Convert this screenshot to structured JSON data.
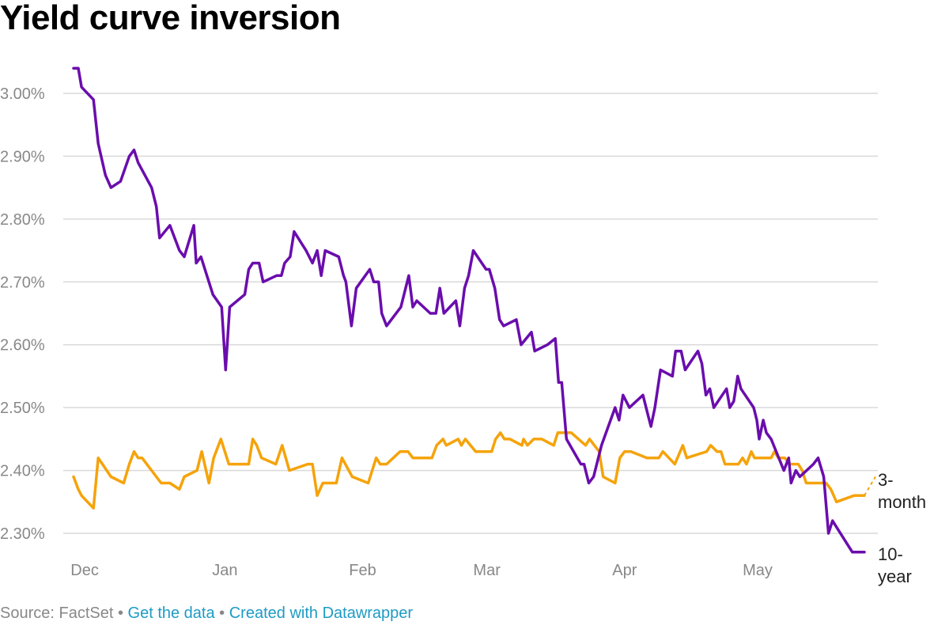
{
  "title": "Yield curve inversion",
  "footer": {
    "source": "Source: FactSet",
    "separator": " • ",
    "get_data": "Get the data",
    "created_with": "Created with Datawrapper"
  },
  "colors": {
    "ten_year": "#6a0dad",
    "three_month": "#f5a30b",
    "grid": "#d9d9d9",
    "axis_text": "#888888",
    "label_text": "#222222"
  },
  "chart_data": {
    "type": "line",
    "title": "Yield curve inversion",
    "xlabel": "",
    "ylabel": "",
    "ylim": [
      2.27,
      3.04
    ],
    "xlim": [
      0,
      1000
    ],
    "y_ticks": [
      3.0,
      2.9,
      2.8,
      2.7,
      2.6,
      2.5,
      2.4,
      2.3
    ],
    "y_tick_labels": [
      "3.00%",
      "2.90%",
      "2.80%",
      "2.70%",
      "2.60%",
      "2.50%",
      "2.40%",
      "2.30%"
    ],
    "x_ticks": [
      {
        "label": "Dec",
        "x": 14
      },
      {
        "label": "Jan",
        "x": 190
      },
      {
        "label": "Feb",
        "x": 363
      },
      {
        "label": "Mar",
        "x": 519
      },
      {
        "label": "Apr",
        "x": 692
      },
      {
        "label": "May",
        "x": 859
      }
    ],
    "grid": true,
    "series": [
      {
        "name": "10-year",
        "key": "ten_year",
        "end_label": [
          "10-",
          "year"
        ],
        "dashed_tail_from": 993,
        "points": [
          [
            0,
            3.04
          ],
          [
            6,
            3.04
          ],
          [
            10,
            3.01
          ],
          [
            25,
            2.99
          ],
          [
            31,
            2.92
          ],
          [
            40,
            2.87
          ],
          [
            47,
            2.85
          ],
          [
            59,
            2.86
          ],
          [
            70,
            2.9
          ],
          [
            76,
            2.91
          ],
          [
            81,
            2.89
          ],
          [
            98,
            2.85
          ],
          [
            104,
            2.82
          ],
          [
            108,
            2.77
          ],
          [
            121,
            2.79
          ],
          [
            133,
            2.75
          ],
          [
            139,
            2.74
          ],
          [
            151,
            2.79
          ],
          [
            154,
            2.73
          ],
          [
            160,
            2.74
          ],
          [
            175,
            2.68
          ],
          [
            186,
            2.66
          ],
          [
            191,
            2.56
          ],
          [
            196,
            2.66
          ],
          [
            215,
            2.68
          ],
          [
            220,
            2.72
          ],
          [
            225,
            2.73
          ],
          [
            233,
            2.73
          ],
          [
            238,
            2.7
          ],
          [
            255,
            2.71
          ],
          [
            261,
            2.71
          ],
          [
            265,
            2.73
          ],
          [
            272,
            2.74
          ],
          [
            277,
            2.78
          ],
          [
            292,
            2.75
          ],
          [
            300,
            2.73
          ],
          [
            306,
            2.75
          ],
          [
            311,
            2.71
          ],
          [
            316,
            2.75
          ],
          [
            333,
            2.74
          ],
          [
            339,
            2.71
          ],
          [
            342,
            2.7
          ],
          [
            349,
            2.63
          ],
          [
            355,
            2.69
          ],
          [
            372,
            2.72
          ],
          [
            377,
            2.7
          ],
          [
            383,
            2.7
          ],
          [
            387,
            2.65
          ],
          [
            393,
            2.63
          ],
          [
            411,
            2.66
          ],
          [
            417,
            2.69
          ],
          [
            421,
            2.71
          ],
          [
            426,
            2.66
          ],
          [
            431,
            2.67
          ],
          [
            448,
            2.65
          ],
          [
            455,
            2.65
          ],
          [
            460,
            2.69
          ],
          [
            465,
            2.65
          ],
          [
            480,
            2.67
          ],
          [
            485,
            2.63
          ],
          [
            491,
            2.69
          ],
          [
            496,
            2.71
          ],
          [
            502,
            2.75
          ],
          [
            518,
            2.72
          ],
          [
            522,
            2.72
          ],
          [
            529,
            2.69
          ],
          [
            535,
            2.64
          ],
          [
            540,
            2.63
          ],
          [
            556,
            2.64
          ],
          [
            562,
            2.6
          ],
          [
            575,
            2.62
          ],
          [
            579,
            2.59
          ],
          [
            595,
            2.6
          ],
          [
            605,
            2.61
          ],
          [
            609,
            2.54
          ],
          [
            613,
            2.54
          ],
          [
            619,
            2.45
          ],
          [
            628,
            2.43
          ],
          [
            637,
            2.41
          ],
          [
            641,
            2.41
          ],
          [
            647,
            2.38
          ],
          [
            653,
            2.39
          ],
          [
            657,
            2.41
          ],
          [
            663,
            2.44
          ],
          [
            680,
            2.5
          ],
          [
            685,
            2.48
          ],
          [
            690,
            2.52
          ],
          [
            698,
            2.5
          ],
          [
            715,
            2.52
          ],
          [
            721,
            2.49
          ],
          [
            725,
            2.47
          ],
          [
            730,
            2.5
          ],
          [
            737,
            2.56
          ],
          [
            752,
            2.55
          ],
          [
            756,
            2.59
          ],
          [
            763,
            2.59
          ],
          [
            768,
            2.56
          ],
          [
            784,
            2.59
          ],
          [
            789,
            2.57
          ],
          [
            794,
            2.52
          ],
          [
            799,
            2.53
          ],
          [
            804,
            2.5
          ],
          [
            820,
            2.53
          ],
          [
            824,
            2.5
          ],
          [
            829,
            2.51
          ],
          [
            834,
            2.55
          ],
          [
            838,
            2.53
          ],
          [
            854,
            2.5
          ],
          [
            858,
            2.48
          ],
          [
            861,
            2.45
          ],
          [
            866,
            2.48
          ],
          [
            870,
            2.46
          ],
          [
            876,
            2.45
          ],
          [
            892,
            2.4
          ],
          [
            898,
            2.42
          ],
          [
            901,
            2.38
          ],
          [
            907,
            2.4
          ],
          [
            912,
            2.39
          ],
          [
            929,
            2.41
          ],
          [
            935,
            2.42
          ],
          [
            942,
            2.39
          ],
          [
            948,
            2.3
          ],
          [
            953,
            2.32
          ],
          [
            958,
            2.31
          ],
          [
            973,
            2.28
          ],
          [
            978,
            2.27
          ],
          [
            993,
            2.27
          ]
        ]
      },
      {
        "name": "3-month",
        "key": "three_month",
        "end_label": [
          "3-",
          "month"
        ],
        "dashed_tail_from": 993,
        "points": [
          [
            0,
            2.39
          ],
          [
            6,
            2.37
          ],
          [
            10,
            2.36
          ],
          [
            25,
            2.34
          ],
          [
            31,
            2.42
          ],
          [
            47,
            2.39
          ],
          [
            63,
            2.38
          ],
          [
            70,
            2.41
          ],
          [
            76,
            2.43
          ],
          [
            81,
            2.42
          ],
          [
            86,
            2.42
          ],
          [
            110,
            2.38
          ],
          [
            121,
            2.38
          ],
          [
            133,
            2.37
          ],
          [
            139,
            2.39
          ],
          [
            155,
            2.4
          ],
          [
            161,
            2.43
          ],
          [
            170,
            2.38
          ],
          [
            176,
            2.42
          ],
          [
            185,
            2.45
          ],
          [
            195,
            2.41
          ],
          [
            220,
            2.41
          ],
          [
            225,
            2.45
          ],
          [
            230,
            2.44
          ],
          [
            236,
            2.42
          ],
          [
            254,
            2.41
          ],
          [
            262,
            2.44
          ],
          [
            271,
            2.4
          ],
          [
            294,
            2.41
          ],
          [
            300,
            2.41
          ],
          [
            306,
            2.36
          ],
          [
            313,
            2.38
          ],
          [
            330,
            2.38
          ],
          [
            337,
            2.42
          ],
          [
            350,
            2.39
          ],
          [
            370,
            2.38
          ],
          [
            380,
            2.42
          ],
          [
            385,
            2.41
          ],
          [
            393,
            2.41
          ],
          [
            410,
            2.43
          ],
          [
            420,
            2.43
          ],
          [
            426,
            2.42
          ],
          [
            450,
            2.42
          ],
          [
            456,
            2.44
          ],
          [
            464,
            2.45
          ],
          [
            468,
            2.44
          ],
          [
            483,
            2.45
          ],
          [
            487,
            2.44
          ],
          [
            492,
            2.45
          ],
          [
            505,
            2.43
          ],
          [
            525,
            2.43
          ],
          [
            530,
            2.45
          ],
          [
            536,
            2.46
          ],
          [
            541,
            2.45
          ],
          [
            548,
            2.45
          ],
          [
            563,
            2.44
          ],
          [
            565,
            2.45
          ],
          [
            570,
            2.44
          ],
          [
            578,
            2.45
          ],
          [
            588,
            2.45
          ],
          [
            603,
            2.44
          ],
          [
            608,
            2.46
          ],
          [
            625,
            2.46
          ],
          [
            643,
            2.44
          ],
          [
            648,
            2.45
          ],
          [
            660,
            2.43
          ],
          [
            665,
            2.39
          ],
          [
            680,
            2.38
          ],
          [
            686,
            2.42
          ],
          [
            692,
            2.43
          ],
          [
            700,
            2.43
          ],
          [
            720,
            2.42
          ],
          [
            735,
            2.42
          ],
          [
            740,
            2.43
          ],
          [
            755,
            2.41
          ],
          [
            765,
            2.44
          ],
          [
            770,
            2.42
          ],
          [
            795,
            2.43
          ],
          [
            800,
            2.44
          ],
          [
            808,
            2.43
          ],
          [
            813,
            2.43
          ],
          [
            818,
            2.41
          ],
          [
            835,
            2.41
          ],
          [
            840,
            2.42
          ],
          [
            845,
            2.41
          ],
          [
            851,
            2.43
          ],
          [
            855,
            2.42
          ],
          [
            876,
            2.42
          ],
          [
            880,
            2.43
          ],
          [
            885,
            2.42
          ],
          [
            893,
            2.42
          ],
          [
            900,
            2.41
          ],
          [
            910,
            2.41
          ],
          [
            915,
            2.4
          ],
          [
            920,
            2.38
          ],
          [
            945,
            2.38
          ],
          [
            951,
            2.37
          ],
          [
            958,
            2.35
          ],
          [
            980,
            2.36
          ],
          [
            993,
            2.36
          ],
          [
            1007,
            2.39
          ]
        ]
      }
    ]
  }
}
